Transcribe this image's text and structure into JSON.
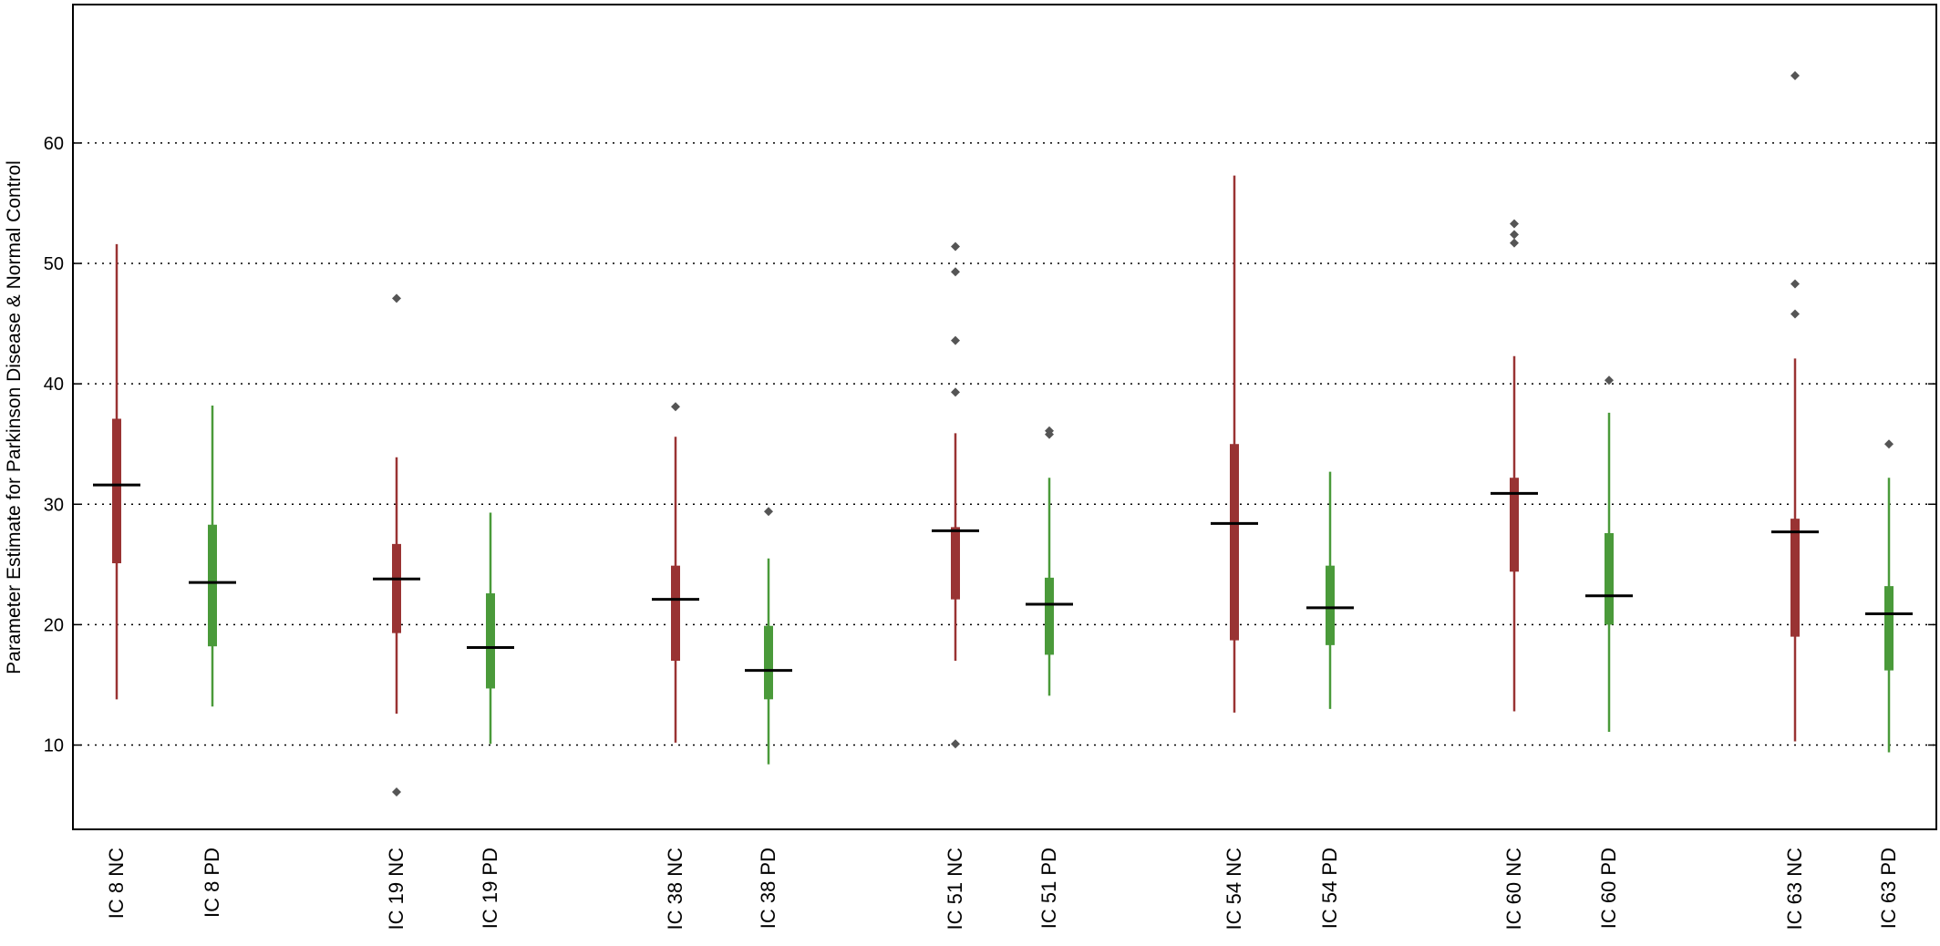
{
  "chart_data": {
    "type": "box",
    "title": "",
    "xlabel": "",
    "ylabel": "Parameter Estimate for Parkinson Disease & Normal Control",
    "ylim": [
      3,
      71.5
    ],
    "yticks": [
      10,
      20,
      30,
      40,
      50,
      60
    ],
    "grid": "horizontal dotted",
    "legend": "none",
    "colors": {
      "NC": "#993333",
      "PD": "#4a9a3a",
      "median": "#000000",
      "outlier": "#555555"
    },
    "categories": [
      "IC 8 NC",
      "IC 8 PD",
      "IC 19 NC",
      "IC 19 PD",
      "IC 38 NC",
      "IC 38 PD",
      "IC 51 NC",
      "IC 51 PD",
      "IC 54 NC",
      "IC 54 PD",
      "IC 60 NC",
      "IC 60 PD",
      "IC 63 NC",
      "IC 63 PD"
    ],
    "boxes": [
      {
        "label": "IC 8 NC",
        "group": "NC",
        "whisker_low": 13.8,
        "q1": 25.1,
        "median": 31.6,
        "q3": 37.1,
        "whisker_high": 51.6,
        "outliers": []
      },
      {
        "label": "IC 8 PD",
        "group": "PD",
        "whisker_low": 13.2,
        "q1": 18.2,
        "median": 23.5,
        "q3": 28.3,
        "whisker_high": 38.2,
        "outliers": []
      },
      {
        "label": "IC 19 NC",
        "group": "NC",
        "whisker_low": 12.6,
        "q1": 19.3,
        "median": 23.8,
        "q3": 26.7,
        "whisker_high": 33.9,
        "outliers": [
          47.1,
          6.1
        ]
      },
      {
        "label": "IC 19 PD",
        "group": "PD",
        "whisker_low": 10.1,
        "q1": 14.7,
        "median": 18.1,
        "q3": 22.6,
        "whisker_high": 29.3,
        "outliers": []
      },
      {
        "label": "IC 38 NC",
        "group": "NC",
        "whisker_low": 10.2,
        "q1": 17.0,
        "median": 22.1,
        "q3": 24.9,
        "whisker_high": 35.6,
        "outliers": [
          38.1
        ]
      },
      {
        "label": "IC 38 PD",
        "group": "PD",
        "whisker_low": 8.4,
        "q1": 13.8,
        "median": 16.2,
        "q3": 19.9,
        "whisker_high": 25.5,
        "outliers": [
          29.4
        ]
      },
      {
        "label": "IC 51 NC",
        "group": "NC",
        "whisker_low": 17.0,
        "q1": 22.1,
        "median": 27.8,
        "q3": 28.1,
        "whisker_high": 35.9,
        "outliers": [
          10.1,
          39.3,
          43.6,
          49.3,
          51.4
        ]
      },
      {
        "label": "IC 51 PD",
        "group": "PD",
        "whisker_low": 14.1,
        "q1": 17.5,
        "median": 21.7,
        "q3": 23.9,
        "whisker_high": 32.2,
        "outliers": [
          35.8,
          36.1
        ]
      },
      {
        "label": "IC 54 NC",
        "group": "NC",
        "whisker_low": 12.7,
        "q1": 18.7,
        "median": 28.4,
        "q3": 35.0,
        "whisker_high": 57.3,
        "outliers": []
      },
      {
        "label": "IC 54 PD",
        "group": "PD",
        "whisker_low": 13.0,
        "q1": 18.3,
        "median": 21.4,
        "q3": 24.9,
        "whisker_high": 32.7,
        "outliers": []
      },
      {
        "label": "IC 60 NC",
        "group": "NC",
        "whisker_low": 12.8,
        "q1": 24.4,
        "median": 30.9,
        "q3": 32.2,
        "whisker_high": 42.3,
        "outliers": [
          51.7,
          52.4,
          53.3
        ]
      },
      {
        "label": "IC 60 PD",
        "group": "PD",
        "whisker_low": 11.1,
        "q1": 20.0,
        "median": 22.4,
        "q3": 27.6,
        "whisker_high": 37.6,
        "outliers": [
          40.3
        ]
      },
      {
        "label": "IC 63 NC",
        "group": "NC",
        "whisker_low": 10.3,
        "q1": 19.0,
        "median": 27.7,
        "q3": 28.8,
        "whisker_high": 42.1,
        "outliers": [
          45.8,
          48.3,
          65.6
        ]
      },
      {
        "label": "IC 63 PD",
        "group": "PD",
        "whisker_low": 9.4,
        "q1": 16.2,
        "median": 20.9,
        "q3": 23.2,
        "whisker_high": 32.2,
        "outliers": [
          35.0
        ]
      }
    ]
  }
}
